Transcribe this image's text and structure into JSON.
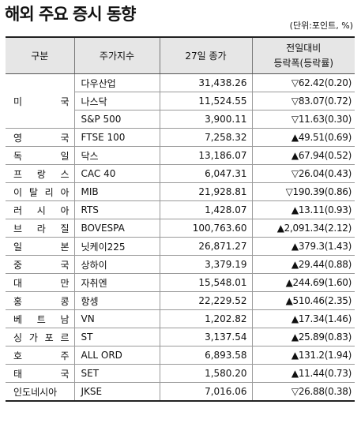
{
  "title": "해외 주요 증시 동향",
  "unit": "(단위:포인트, %)",
  "headers": {
    "region": "구분",
    "index": "주가지수",
    "close": "27일 종가",
    "change_line1": "전일대비",
    "change_line2": "등락폭(등락률)"
  },
  "us": {
    "region": "미 국",
    "rows": [
      {
        "index": "다우산업",
        "close": "31,438.26",
        "change": "▽62.42(0.20)"
      },
      {
        "index": "나스닥",
        "close": "11,524.55",
        "change": "▽83.07(0.72)"
      },
      {
        "index": "S&P 500",
        "close": "3,900.11",
        "change": "▽11.63(0.30)"
      }
    ]
  },
  "rows": [
    {
      "region": "영 국",
      "index": "FTSE 100",
      "close": "7,258.32",
      "change": "▲49.51(0.69)"
    },
    {
      "region": "독 일",
      "index": "닥스",
      "close": "13,186.07",
      "change": "▲67.94(0.52)"
    },
    {
      "region": "프 랑 스",
      "index": "CAC 40",
      "close": "6,047.31",
      "change": "▽26.04(0.43)"
    },
    {
      "region": "이 탈 리 아",
      "index": "MIB",
      "close": "21,928.81",
      "change": "▽190.39(0.86)"
    },
    {
      "region": "러 시 아",
      "index": "RTS",
      "close": "1,428.07",
      "change": "▲13.11(0.93)"
    },
    {
      "region": "브 라 질",
      "index": "BOVESPA",
      "close": "100,763.60",
      "change": "▲2,091.34(2.12)"
    },
    {
      "region": "일 본",
      "index": "닛케이225",
      "close": "26,871.27",
      "change": "▲379.3(1.43)"
    },
    {
      "region": "중 국",
      "index": "상하이",
      "close": "3,379.19",
      "change": "▲29.44(0.88)"
    },
    {
      "region": "대 만",
      "index": "자취엔",
      "close": "15,548.01",
      "change": "▲244.69(1.60)"
    },
    {
      "region": "홍 콩",
      "index": "항셍",
      "close": "22,229.52",
      "change": "▲510.46(2.35)"
    },
    {
      "region": "베 트 남",
      "index": "VN",
      "close": "1,202.82",
      "change": "▲17.34(1.46)"
    },
    {
      "region": "싱 가 포 르",
      "index": "ST",
      "close": "3,137.54",
      "change": "▲25.89(0.83)"
    },
    {
      "region": "호 주",
      "index": "ALL ORD",
      "close": "6,893.58",
      "change": "▲131.2(1.94)"
    },
    {
      "region": "태 국",
      "index": "SET",
      "close": "1,580.20",
      "change": "▲11.44(0.73)"
    },
    {
      "region": "인도네시아",
      "index": "JKSE",
      "close": "7,016.06",
      "change": "▽26.88(0.38)"
    }
  ]
}
